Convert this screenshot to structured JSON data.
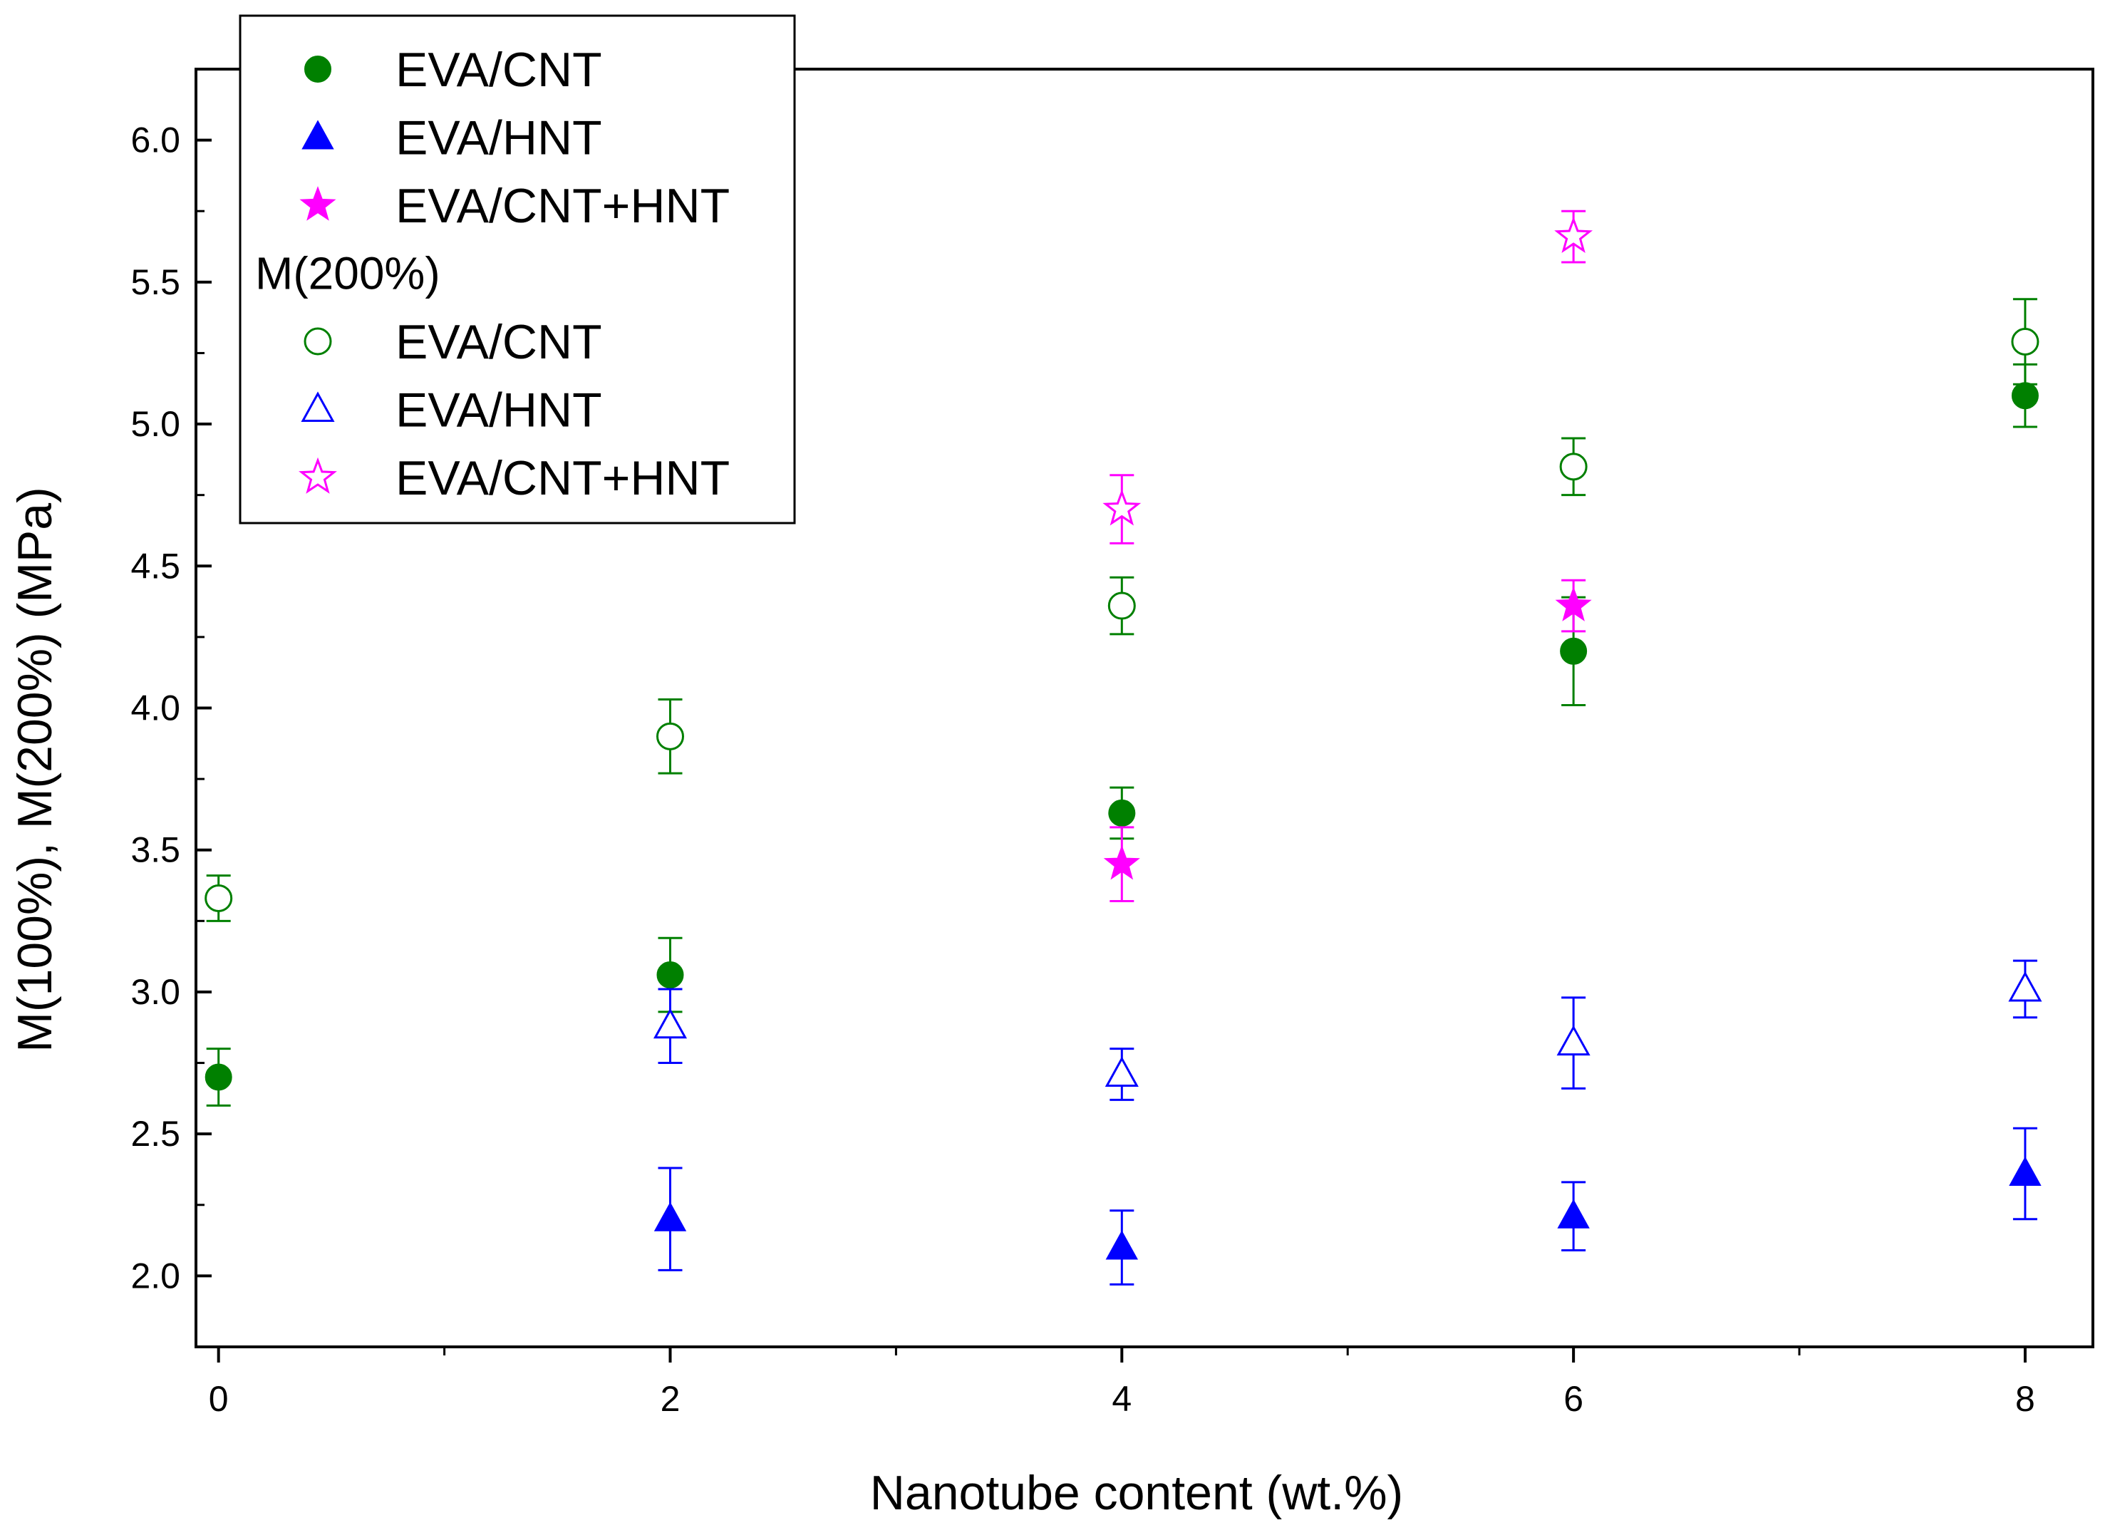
{
  "chart_data": {
    "type": "scatter",
    "xlabel": "Nanotube content  (wt.%)",
    "ylabel": "M(100%), M(200%)   (MPa)",
    "xlim": [
      -0.1,
      8.3
    ],
    "ylim": [
      1.75,
      6.25
    ],
    "x_ticks": [
      0,
      2,
      4,
      6,
      8
    ],
    "x_tick_labels": [
      "0",
      "2",
      "4",
      "6",
      "8"
    ],
    "y_ticks": [
      2.0,
      2.5,
      3.0,
      3.5,
      4.0,
      4.5,
      5.0,
      5.5,
      6.0
    ],
    "y_tick_labels": [
      "2.0",
      "2.5",
      "3.0",
      "3.5",
      "4.0",
      "4.5",
      "5.0",
      "5.5",
      "6.0"
    ],
    "legend": {
      "placement": "top-left",
      "entries": [
        {
          "label": "EVA/CNT",
          "series": 0
        },
        {
          "label": "EVA/HNT",
          "series": 1
        },
        {
          "label": "EVA/CNT+HNT",
          "series": 2
        },
        {
          "header": "M(200%)"
        },
        {
          "label": "EVA/CNT",
          "series": 3
        },
        {
          "label": "EVA/HNT",
          "series": 4
        },
        {
          "label": "EVA/CNT+HNT",
          "series": 5
        }
      ]
    },
    "series": [
      {
        "name": "EVA/CNT",
        "group": "M(100%)",
        "marker": "circle",
        "filled": true,
        "color": "#008000",
        "points": [
          {
            "x": 0,
            "y": 2.7,
            "err": 0.1
          },
          {
            "x": 2,
            "y": 3.06,
            "err": 0.13
          },
          {
            "x": 4,
            "y": 3.63,
            "err": 0.09
          },
          {
            "x": 6,
            "y": 4.2,
            "err": 0.19
          },
          {
            "x": 8,
            "y": 5.1,
            "err": 0.11
          }
        ]
      },
      {
        "name": "EVA/HNT",
        "group": "M(100%)",
        "marker": "triangle",
        "filled": true,
        "color": "#0000ff",
        "points": [
          {
            "x": 2,
            "y": 2.2,
            "err": 0.18
          },
          {
            "x": 4,
            "y": 2.1,
            "err": 0.13
          },
          {
            "x": 6,
            "y": 2.21,
            "err": 0.12
          },
          {
            "x": 8,
            "y": 2.36,
            "err": 0.16
          }
        ]
      },
      {
        "name": "EVA/CNT+HNT",
        "group": "M(100%)",
        "marker": "star",
        "filled": true,
        "color": "#ff00ff",
        "points": [
          {
            "x": 4,
            "y": 3.45,
            "err": 0.13
          },
          {
            "x": 6,
            "y": 4.36,
            "err": 0.09
          }
        ]
      },
      {
        "name": "EVA/CNT",
        "group": "M(200%)",
        "marker": "circle",
        "filled": false,
        "color": "#008000",
        "points": [
          {
            "x": 0,
            "y": 3.33,
            "err": 0.08
          },
          {
            "x": 2,
            "y": 3.9,
            "err": 0.13
          },
          {
            "x": 4,
            "y": 4.36,
            "err": 0.1
          },
          {
            "x": 6,
            "y": 4.85,
            "err": 0.1
          },
          {
            "x": 8,
            "y": 5.29,
            "err": 0.15
          }
        ]
      },
      {
        "name": "EVA/HNT",
        "group": "M(200%)",
        "marker": "triangle",
        "filled": false,
        "color": "#0000ff",
        "points": [
          {
            "x": 2,
            "y": 2.88,
            "err": 0.13
          },
          {
            "x": 4,
            "y": 2.71,
            "err": 0.09
          },
          {
            "x": 6,
            "y": 2.82,
            "err": 0.16
          },
          {
            "x": 8,
            "y": 3.01,
            "err": 0.1
          }
        ]
      },
      {
        "name": "EVA/CNT+HNT",
        "group": "M(200%)",
        "marker": "star",
        "filled": false,
        "color": "#ff00ff",
        "points": [
          {
            "x": 4,
            "y": 4.7,
            "err": 0.12
          },
          {
            "x": 6,
            "y": 5.66,
            "err": 0.09
          }
        ]
      }
    ]
  }
}
